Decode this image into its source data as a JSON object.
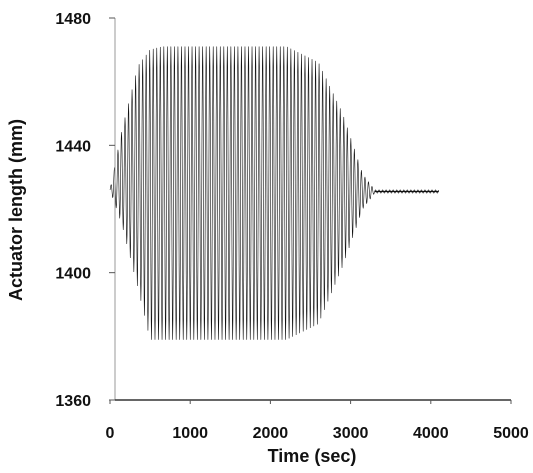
{
  "chart_data": {
    "type": "line",
    "title": "",
    "xlabel": "Time (sec)",
    "ylabel": "Actuator length (mm)",
    "xlim": [
      0,
      5000
    ],
    "ylim": [
      1360,
      1480
    ],
    "x_ticks": [
      0,
      1000,
      2000,
      3000,
      4000,
      5000
    ],
    "x_tick_labels": [
      "0",
      "1000",
      "2000",
      "3000",
      "4000",
      "5000"
    ],
    "y_ticks": [
      1360,
      1400,
      1440,
      1480
    ],
    "y_tick_labels": [
      "1360",
      "1400",
      "1440",
      "1480"
    ],
    "grid": false,
    "legend": "none",
    "line_color": "#111111",
    "series": [
      {
        "description_of_signal": "oscillation",
        "envelope_points": [
          {
            "t": 0,
            "low": 1426,
            "high": 1426
          },
          {
            "t": 150,
            "low": 1415,
            "high": 1445
          },
          {
            "t": 350,
            "low": 1395,
            "high": 1465
          },
          {
            "t": 500,
            "low": 1379,
            "high": 1470
          },
          {
            "t": 650,
            "low": 1379,
            "high": 1471
          },
          {
            "t": 2200,
            "low": 1379,
            "high": 1471
          },
          {
            "t": 2600,
            "low": 1384,
            "high": 1466
          },
          {
            "t": 2900,
            "low": 1402,
            "high": 1450
          },
          {
            "t": 3150,
            "low": 1420,
            "high": 1431
          },
          {
            "t": 3300,
            "low": 1425,
            "high": 1426
          },
          {
            "t": 4100,
            "low": 1425,
            "high": 1426
          }
        ],
        "steady_value": 1425.5,
        "end_time": 4100
      }
    ]
  }
}
